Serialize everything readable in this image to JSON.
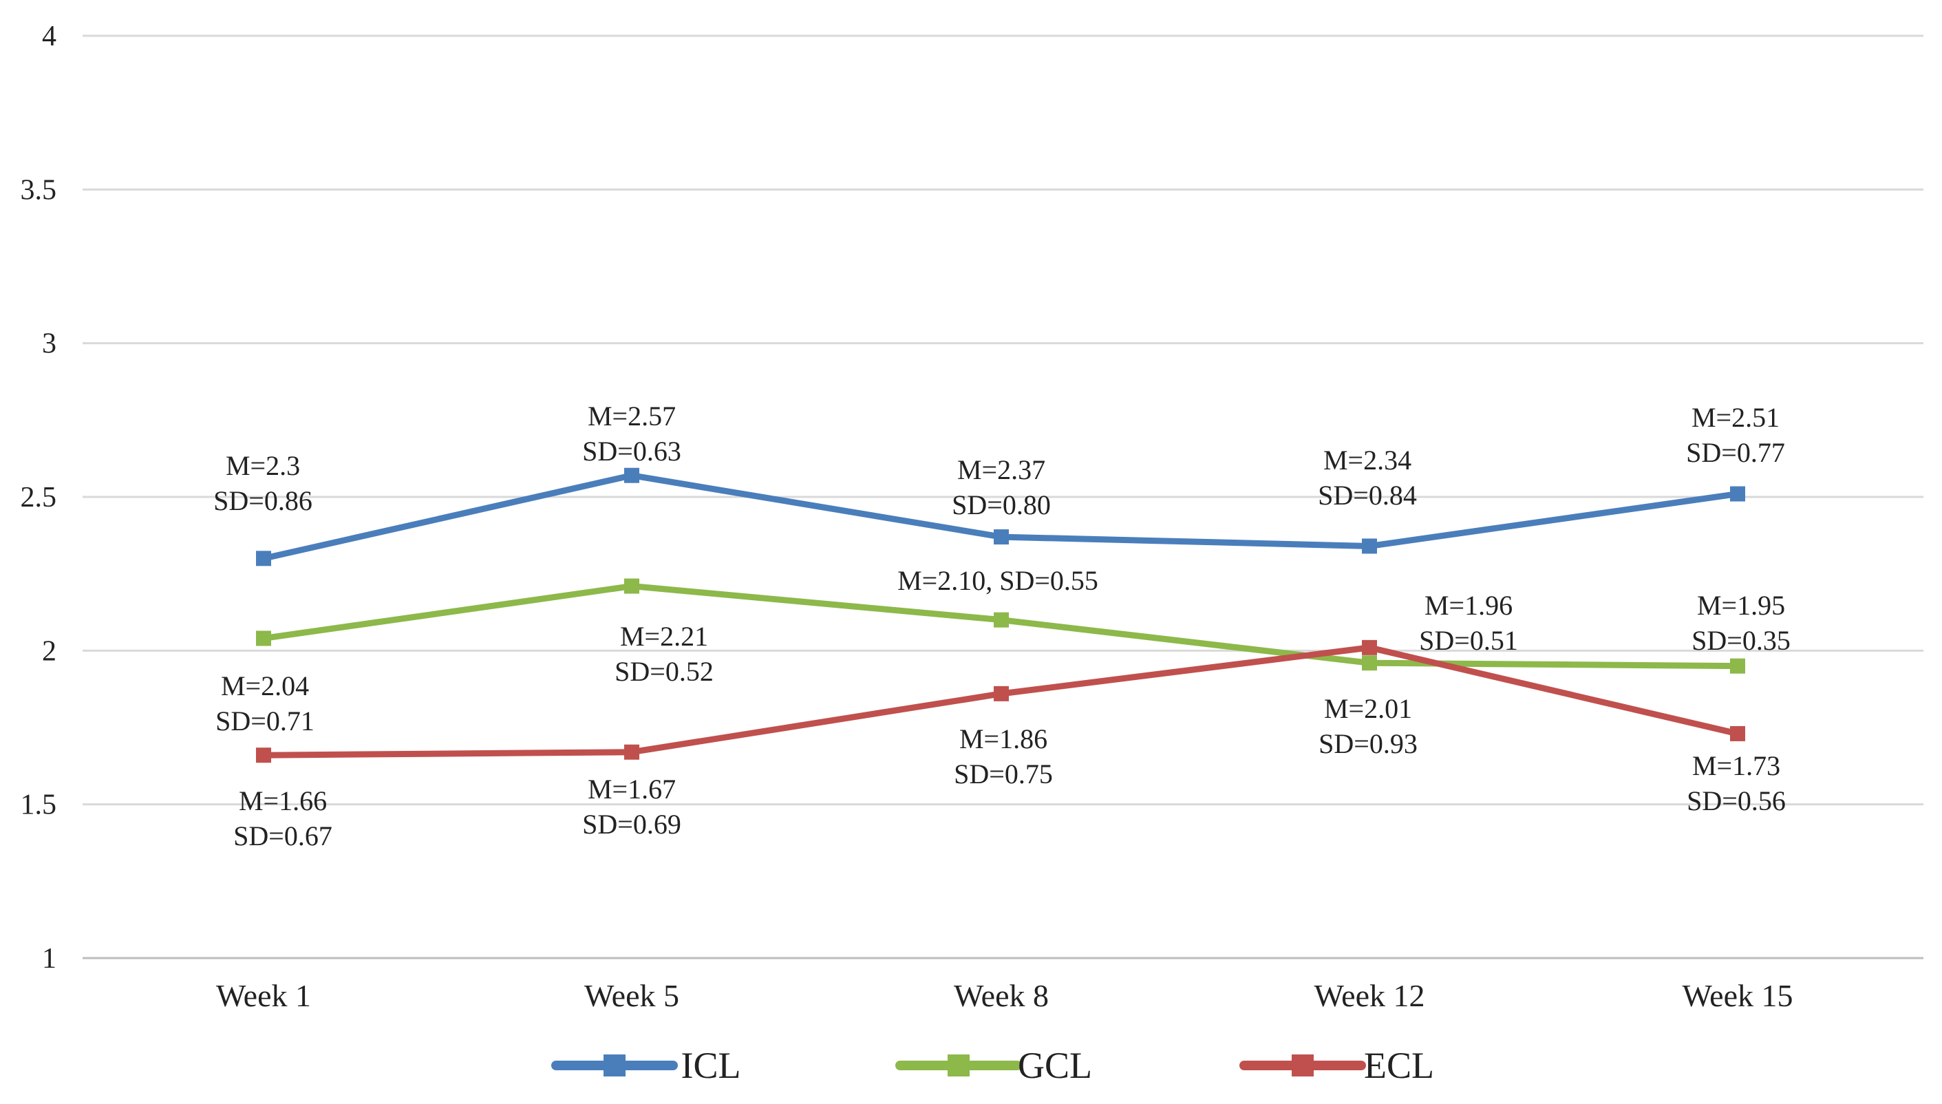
{
  "chart_data": {
    "type": "line",
    "title": "",
    "xlabel": "",
    "ylabel": "",
    "categories": [
      "Week 1",
      "Week 5",
      "Week 8",
      "Week 12",
      "Week 15"
    ],
    "ylim": [
      1,
      4
    ],
    "yticks": [
      "1",
      "1.5",
      "2",
      "2.5",
      "3",
      "3.5",
      "4"
    ],
    "ytick_values": [
      1,
      1.5,
      2,
      2.5,
      3,
      3.5,
      4
    ],
    "grid": true,
    "legend_position": "bottom",
    "series": [
      {
        "name": "ICL",
        "color": "#4a7ebb",
        "values": [
          2.3,
          2.57,
          2.37,
          2.34,
          2.51
        ],
        "annotations": [
          [
            "M=2.3",
            "SD=0.86"
          ],
          [
            "M=2.57",
            "SD=0.63"
          ],
          [
            "M=2.37",
            "SD=0.80"
          ],
          [
            "M=2.34",
            "SD=0.84"
          ],
          [
            "M=2.51",
            "SD=0.77"
          ]
        ]
      },
      {
        "name": "GCL",
        "color": "#8db84a",
        "values": [
          2.04,
          2.21,
          2.1,
          1.96,
          1.95
        ],
        "annotations": [
          [
            "M=2.04",
            "SD=0.71"
          ],
          [
            "M=2.21",
            "SD=0.52"
          ],
          [
            "M=2.10, SD=0.55"
          ],
          [
            "M=1.96",
            "SD=0.51"
          ],
          [
            "M=1.95",
            "SD=0.35"
          ]
        ]
      },
      {
        "name": "ECL",
        "color": "#c0504d",
        "values": [
          1.66,
          1.67,
          1.86,
          2.01,
          1.73
        ],
        "annotations": [
          [
            "M=1.66",
            "SD=0.67"
          ],
          [
            "M=1.67",
            "SD=0.69"
          ],
          [
            "M=1.86",
            "SD=0.75"
          ],
          [
            "M=2.01",
            "SD=0.93"
          ],
          [
            "M=1.73",
            "SD=0.56"
          ]
        ]
      }
    ]
  }
}
